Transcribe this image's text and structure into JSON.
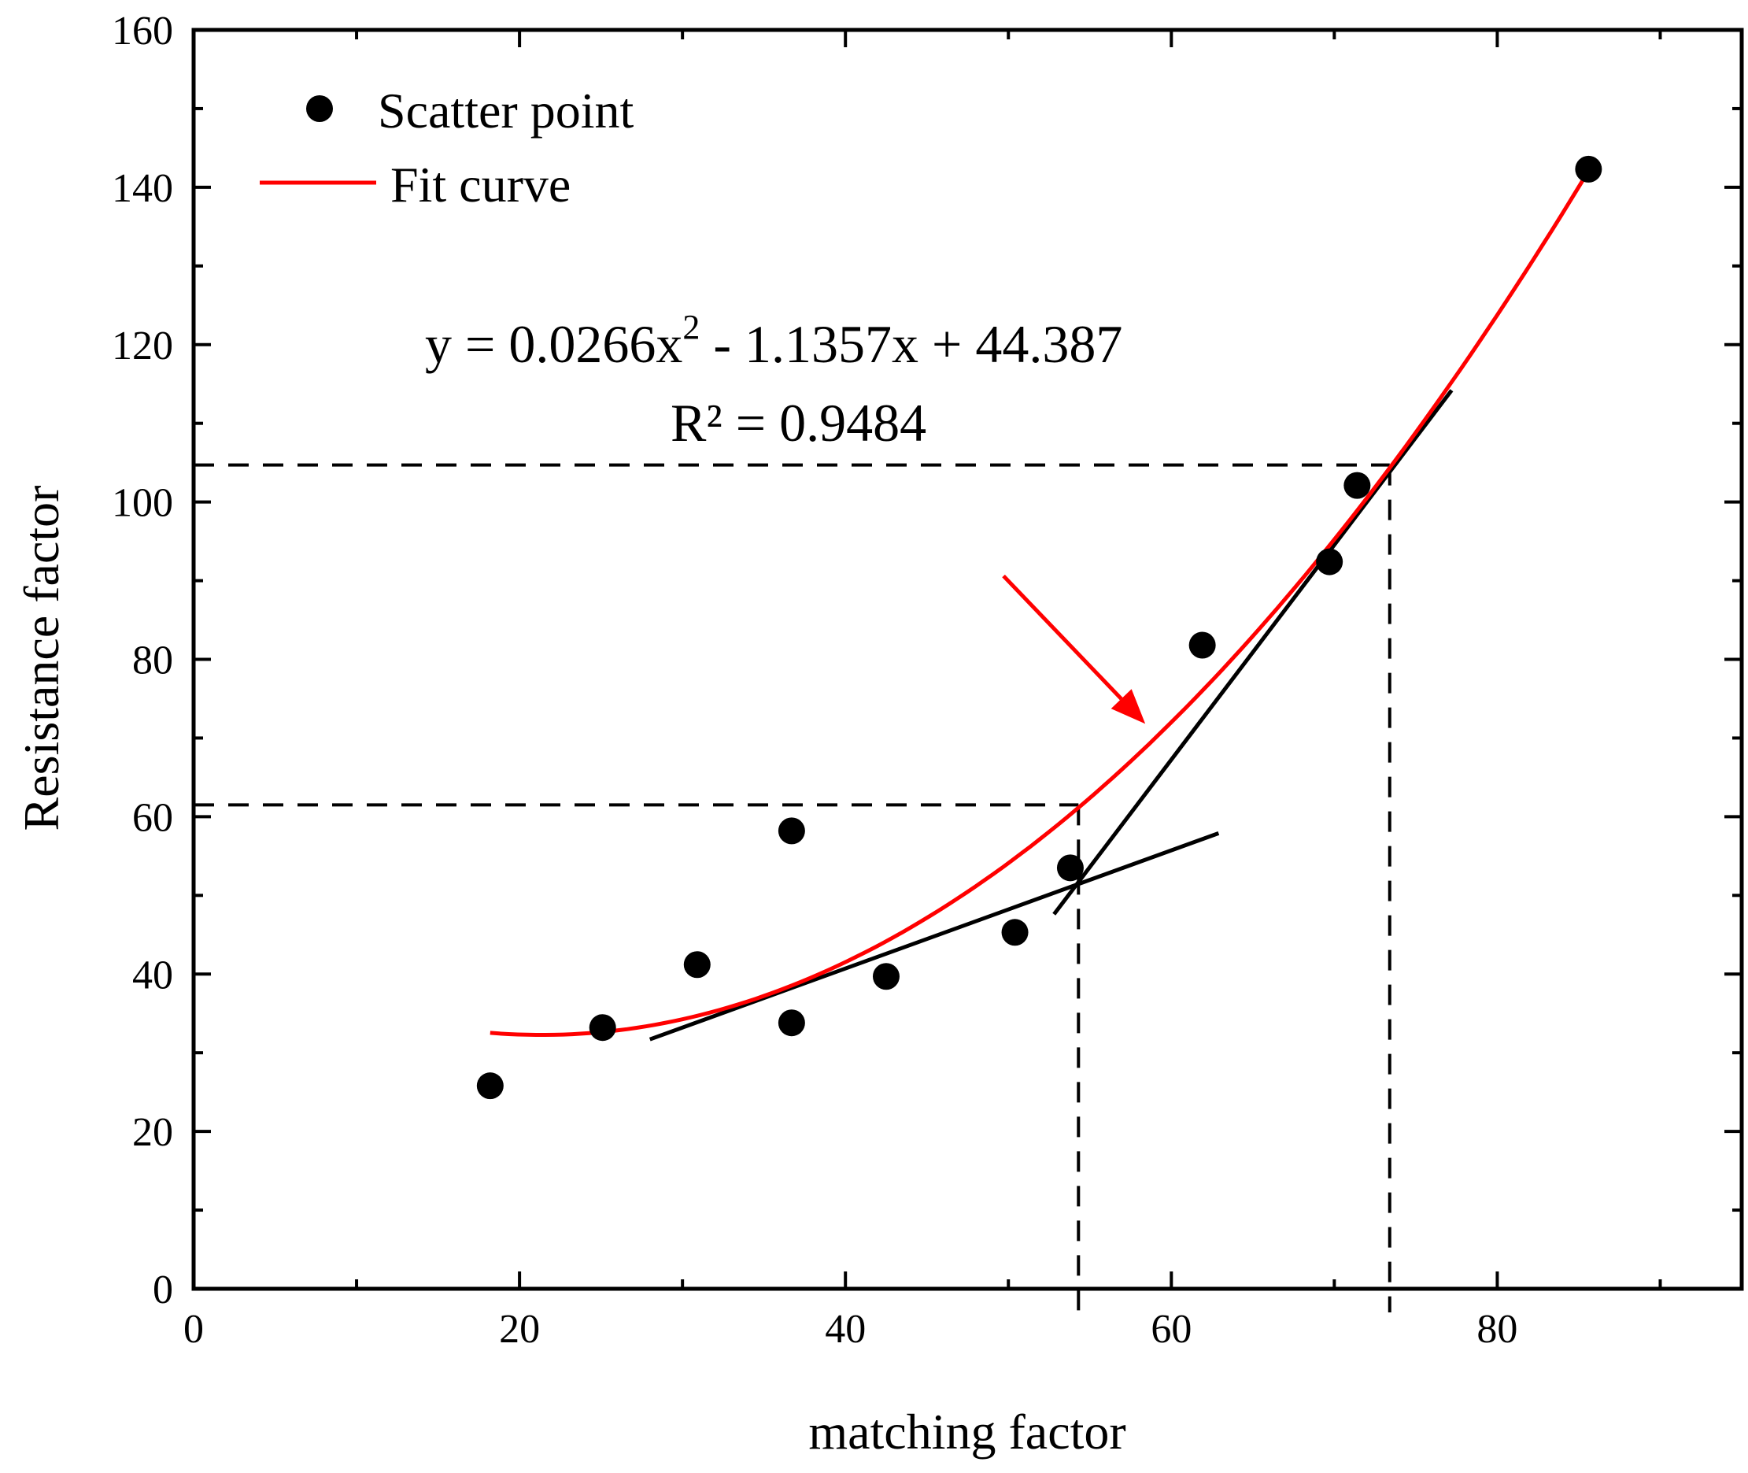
{
  "chart_data": {
    "type": "scatter",
    "title": "",
    "xlabel": "matching factor",
    "ylabel": "Resistance factor",
    "xlim": [
      0,
      95
    ],
    "ylim": [
      0,
      160
    ],
    "x_ticks": [
      0,
      20,
      40,
      60,
      80
    ],
    "y_ticks": [
      0,
      20,
      40,
      60,
      80,
      100,
      120,
      140,
      160
    ],
    "x_tick_labels": [
      "0",
      "20",
      "40",
      "60",
      "80"
    ],
    "y_tick_labels": [
      "0",
      "20",
      "40",
      "60",
      "80",
      "100",
      "120",
      "140",
      "160"
    ],
    "grid": false,
    "legend": {
      "placement": "top-left",
      "entries": [
        {
          "label": "Scatter point",
          "marker": "circle",
          "color": "#000000"
        },
        {
          "label": "Fit curve",
          "marker": "line",
          "color": "#ff0000"
        }
      ]
    },
    "series": [
      {
        "name": "Scatter point",
        "type": "scatter",
        "color": "#000000",
        "points": [
          {
            "x": 18.2,
            "y": 25.8
          },
          {
            "x": 25.1,
            "y": 33.2
          },
          {
            "x": 30.9,
            "y": 41.2
          },
          {
            "x": 36.7,
            "y": 33.8
          },
          {
            "x": 36.7,
            "y": 58.2
          },
          {
            "x": 42.5,
            "y": 39.7
          },
          {
            "x": 50.4,
            "y": 45.3
          },
          {
            "x": 53.8,
            "y": 53.5
          },
          {
            "x": 61.9,
            "y": 81.8
          },
          {
            "x": 69.7,
            "y": 92.4
          },
          {
            "x": 71.4,
            "y": 102.1
          },
          {
            "x": 85.6,
            "y": 142.3
          }
        ]
      },
      {
        "name": "Fit curve",
        "type": "line",
        "color": "#ff0000",
        "equation": {
          "a": 0.0266,
          "b": -1.1357,
          "c": 44.387
        },
        "x_range": [
          18.2,
          85.6
        ]
      }
    ],
    "tangent_lines": [
      {
        "color": "#000000",
        "from": {
          "x": 28.0,
          "y": 31.7
        },
        "to": {
          "x": 62.9,
          "y": 57.9
        }
      },
      {
        "color": "#000000",
        "from": {
          "x": 52.8,
          "y": 47.6
        },
        "to": {
          "x": 77.2,
          "y": 114.2
        }
      }
    ],
    "reference_lines": [
      {
        "style": "dashed",
        "color": "#000000",
        "x": 54.3,
        "y": 61.5
      },
      {
        "style": "dashed",
        "color": "#000000",
        "x": 73.4,
        "y": 104.7
      }
    ],
    "arrow": {
      "color": "#ff0000",
      "from": {
        "x": 49.7,
        "y": 90.6
      },
      "to": {
        "x": 58.4,
        "y": 71.8
      }
    },
    "annotations": {
      "equation_main": "y = 0.0266x",
      "equation_exp": "2",
      "equation_rest": " - 1.1357x + 44.387",
      "r_squared": "R² = 0.9484"
    }
  }
}
